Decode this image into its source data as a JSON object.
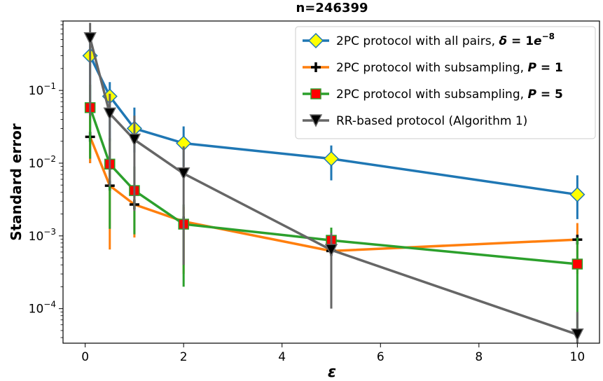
{
  "chart_data": {
    "type": "line",
    "title": "n=246399",
    "xlabel": "ε",
    "ylabel": "Standard error",
    "xlim": [
      -0.45,
      10.45
    ],
    "ylim": [
      3.35e-05,
      0.9
    ],
    "yscale": "log",
    "x_ticks": [
      0,
      2,
      4,
      6,
      8,
      10
    ],
    "x_tick_labels": [
      "0",
      "2",
      "4",
      "6",
      "8",
      "10"
    ],
    "y_ticks": [
      0.0001,
      0.001,
      0.01,
      0.1
    ],
    "y_tick_labels": [
      {
        "base": "10",
        "exp": "−4"
      },
      {
        "base": "10",
        "exp": "−3"
      },
      {
        "base": "10",
        "exp": "−2"
      },
      {
        "base": "10",
        "exp": "−1"
      }
    ],
    "legend": {
      "position": "top-right",
      "entries": [
        {
          "prefix": "2PC protocol with all pairs, ",
          "math_sym": "δ",
          "math_eq": " = 1",
          "math_e": "e",
          "math_sup": "−8"
        },
        {
          "prefix": "2PC protocol with subsampling, ",
          "math_sym": "P",
          "math_eq": " = 1",
          "math_e": "",
          "math_sup": ""
        },
        {
          "prefix": "2PC protocol with subsampling, ",
          "math_sym": "P",
          "math_eq": " = 5",
          "math_e": "",
          "math_sup": ""
        },
        {
          "prefix": "RR-based protocol (Algorithm 1)",
          "math_sym": "",
          "math_eq": "",
          "math_e": "",
          "math_sup": ""
        }
      ]
    },
    "series": [
      {
        "color": "#1f77b4",
        "marker": "diamond",
        "marker_fill": "#ffff00",
        "x": [
          0.1,
          0.5,
          1,
          2,
          5,
          10
        ],
        "y": [
          0.3,
          0.083,
          0.03,
          0.0188,
          0.0115,
          0.0037
        ],
        "err_low": [
          0.01,
          0.02,
          0.014,
          0.009,
          0.0058,
          0.0017
        ],
        "err_high": [
          0.58,
          0.13,
          0.058,
          0.032,
          0.0175,
          0.0068
        ]
      },
      {
        "color": "#ff7f0e",
        "marker": "plus",
        "marker_fill": "#000000",
        "x": [
          0.1,
          0.5,
          1,
          2,
          5,
          10
        ],
        "y": [
          0.023,
          0.0049,
          0.0027,
          0.00158,
          0.00062,
          0.00089
        ],
        "err_low": [
          0.01,
          0.00065,
          0.00095,
          0.0003,
          0.00015,
          0.0003
        ],
        "err_high": [
          0.06,
          0.01,
          0.0045,
          0.0025,
          0.001,
          0.0015
        ]
      },
      {
        "color": "#2ca02c",
        "marker": "square",
        "marker_fill": "#ff0000",
        "x": [
          0.1,
          0.5,
          1,
          2,
          5,
          10
        ],
        "y": [
          0.058,
          0.0097,
          0.0042,
          0.00145,
          0.00087,
          0.00041
        ],
        "err_low": [
          0.0115,
          0.00125,
          0.00105,
          0.0002,
          0.00013,
          4e-05
        ],
        "err_high": [
          0.12,
          0.022,
          0.009,
          0.0027,
          0.0013,
          0.00095
        ]
      },
      {
        "color": "#666666",
        "marker": "triangle-down",
        "marker_fill": "#000000",
        "x": [
          0.1,
          0.5,
          1,
          2,
          5,
          10
        ],
        "y": [
          0.52,
          0.048,
          0.021,
          0.0072,
          0.00064,
          4.4e-05
        ],
        "err_low": [
          0.045,
          0.0048,
          0.0022,
          0.0004,
          0.0001,
          3.35e-05
        ],
        "err_high": [
          0.85,
          0.09,
          0.045,
          0.017,
          0.0011,
          9e-05
        ]
      }
    ]
  }
}
